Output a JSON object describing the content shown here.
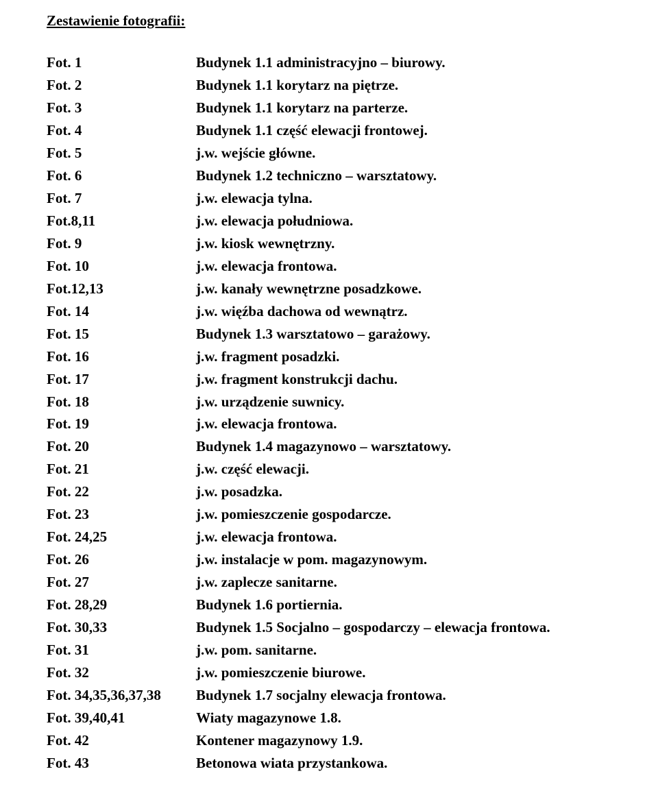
{
  "title": "Zestawienie fotografii:",
  "rows": [
    {
      "label": "Fot. 1",
      "desc": "Budynek 1.1 administracyjno – biurowy."
    },
    {
      "label": "Fot. 2",
      "desc": "Budynek 1.1 korytarz na piętrze."
    },
    {
      "label": "Fot. 3",
      "desc": "Budynek 1.1 korytarz na parterze."
    },
    {
      "label": "Fot. 4",
      "desc": "Budynek 1.1 część elewacji frontowej."
    },
    {
      "label": "Fot. 5",
      "desc": "j.w. wejście główne."
    },
    {
      "label": "Fot. 6",
      "desc": "Budynek 1.2 techniczno – warsztatowy."
    },
    {
      "label": "Fot. 7",
      "desc": "j.w. elewacja tylna."
    },
    {
      "label": "Fot.8,11",
      "desc": "j.w. elewacja południowa."
    },
    {
      "label": "Fot. 9",
      "desc": "j.w. kiosk wewnętrzny."
    },
    {
      "label": "Fot. 10",
      "desc": "j.w. elewacja frontowa."
    },
    {
      "label": "Fot.12,13",
      "desc": "j.w. kanały wewnętrzne posadzkowe."
    },
    {
      "label": "Fot. 14",
      "desc": "j.w. więźba dachowa od wewnątrz."
    },
    {
      "label": "Fot. 15",
      "desc": "Budynek 1.3 warsztatowo – garażowy."
    },
    {
      "label": "Fot. 16",
      "desc": "j.w. fragment posadzki."
    },
    {
      "label": "Fot. 17",
      "desc": "j.w. fragment konstrukcji dachu."
    },
    {
      "label": "Fot. 18",
      "desc": "j.w. urządzenie suwnicy."
    },
    {
      "label": "Fot. 19",
      "desc": "j.w. elewacja frontowa."
    },
    {
      "label": "Fot. 20",
      "desc": "Budynek 1.4 magazynowo – warsztatowy."
    },
    {
      "label": "Fot. 21",
      "desc": "j.w. część elewacji."
    },
    {
      "label": "Fot. 22",
      "desc": "j.w. posadzka."
    },
    {
      "label": "Fot. 23",
      "desc": "j.w. pomieszczenie gospodarcze."
    },
    {
      "label": "Fot. 24,25",
      "desc": "j.w. elewacja frontowa."
    },
    {
      "label": "Fot. 26",
      "desc": "j.w. instalacje w pom. magazynowym."
    },
    {
      "label": "Fot. 27",
      "desc": "j.w. zaplecze sanitarne."
    },
    {
      "label": "Fot. 28,29",
      "desc": "Budynek 1.6 portiernia."
    },
    {
      "label": "Fot. 30,33",
      "desc": "Budynek 1.5 Socjalno – gospodarczy – elewacja frontowa."
    },
    {
      "label": "Fot. 31",
      "desc": "j.w. pom. sanitarne."
    },
    {
      "label": "Fot. 32",
      "desc": "j.w. pomieszczenie biurowe."
    },
    {
      "label": "Fot. 34,35,36,37,38",
      "desc": "Budynek 1.7 socjalny elewacja frontowa."
    },
    {
      "label": "Fot. 39,40,41",
      "desc": "Wiaty magazynowe 1.8."
    },
    {
      "label": "Fot. 42",
      "desc": "Kontener magazynowy 1.9."
    },
    {
      "label": "Fot. 43",
      "desc": "Betonowa wiata przystankowa."
    }
  ]
}
